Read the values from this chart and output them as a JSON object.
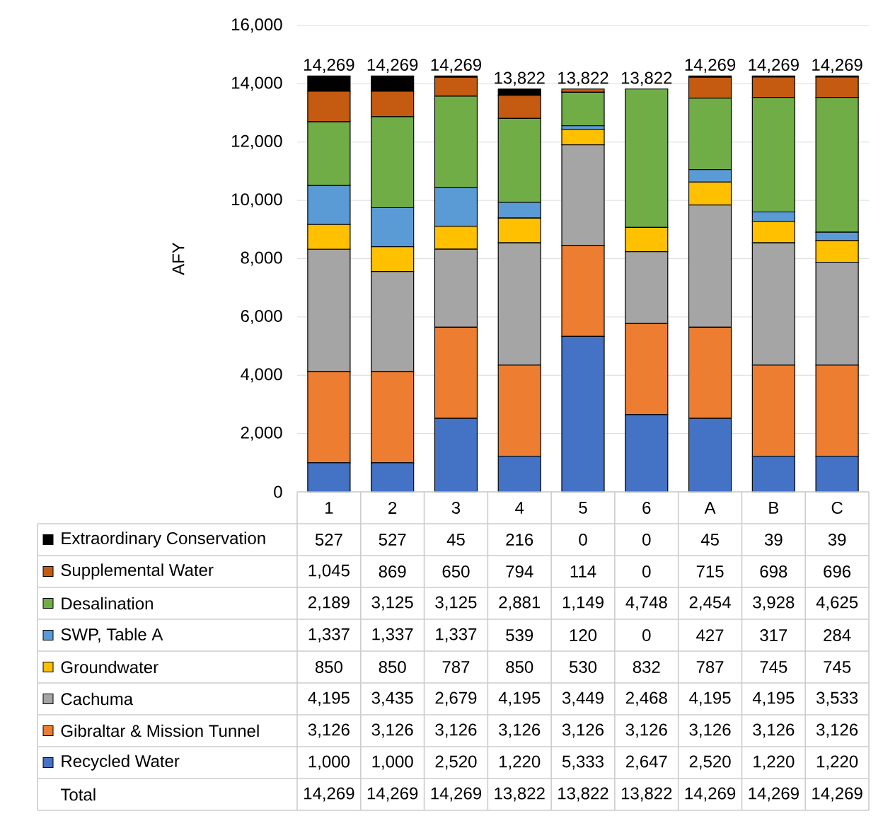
{
  "chart_data": {
    "type": "bar",
    "stacked": true,
    "ylabel": "AFY",
    "categories": [
      "1",
      "2",
      "3",
      "4",
      "5",
      "6",
      "A",
      "B",
      "C"
    ],
    "series": [
      {
        "name": "Recycled Water",
        "color": "#4472c4",
        "values": [
          1000,
          1000,
          2520,
          1220,
          5333,
          2647,
          2520,
          1220,
          1220
        ],
        "value_labels": [
          "1,000",
          "1,000",
          "2,520",
          "1,220",
          "5,333",
          "2,647",
          "2,520",
          "1,220",
          "1,220"
        ]
      },
      {
        "name": "Gibraltar & Mission Tunnel",
        "color": "#ed7d31",
        "values": [
          3126,
          3126,
          3126,
          3126,
          3126,
          3126,
          3126,
          3126,
          3126
        ],
        "value_labels": [
          "3,126",
          "3,126",
          "3,126",
          "3,126",
          "3,126",
          "3,126",
          "3,126",
          "3,126",
          "3,126"
        ]
      },
      {
        "name": "Cachuma",
        "color": "#a5a5a5",
        "values": [
          4195,
          3435,
          2679,
          4195,
          3449,
          2468,
          4195,
          4195,
          3533
        ],
        "value_labels": [
          "4,195",
          "3,435",
          "2,679",
          "4,195",
          "3,449",
          "2,468",
          "4,195",
          "4,195",
          "3,533"
        ]
      },
      {
        "name": "Groundwater",
        "color": "#ffc000",
        "values": [
          850,
          850,
          787,
          850,
          530,
          832,
          787,
          745,
          745
        ],
        "value_labels": [
          "850",
          "850",
          "787",
          "850",
          "530",
          "832",
          "787",
          "745",
          "745"
        ]
      },
      {
        "name": "SWP, Table A",
        "color": "#5b9bd5",
        "values": [
          1337,
          1337,
          1337,
          539,
          120,
          0,
          427,
          317,
          284
        ],
        "value_labels": [
          "1,337",
          "1,337",
          "1,337",
          "539",
          "120",
          "0",
          "427",
          "317",
          "284"
        ]
      },
      {
        "name": "Desalination",
        "color": "#70ad47",
        "values": [
          2189,
          3125,
          3125,
          2881,
          1149,
          4748,
          2454,
          3928,
          4625
        ],
        "value_labels": [
          "2,189",
          "3,125",
          "3,125",
          "2,881",
          "1,149",
          "4,748",
          "2,454",
          "3,928",
          "4,625"
        ]
      },
      {
        "name": "Supplemental Water",
        "color": "#c55a11",
        "values": [
          1045,
          869,
          650,
          794,
          114,
          0,
          715,
          698,
          696
        ],
        "value_labels": [
          "1,045",
          "869",
          "650",
          "794",
          "114",
          "0",
          "715",
          "698",
          "696"
        ]
      },
      {
        "name": "Extraordinary Conservation",
        "color": "#000000",
        "values": [
          527,
          527,
          45,
          216,
          0,
          0,
          45,
          39,
          39
        ],
        "value_labels": [
          "527",
          "527",
          "45",
          "216",
          "0",
          "0",
          "45",
          "39",
          "39"
        ]
      }
    ],
    "totals": [
      "14,269",
      "14,269",
      "14,269",
      "13,822",
      "13,822",
      "13,822",
      "14,269",
      "14,269",
      "14,269"
    ],
    "annotations": [
      "Total"
    ],
    "ylim": [
      0,
      16000
    ],
    "yticks": [
      0,
      {
        "value": 2000,
        "label": "2,000"
      },
      {
        "value": 4000,
        "label": "4,000"
      },
      {
        "value": 6000,
        "label": "6,000"
      },
      {
        "value": 8000,
        "label": "8,000"
      },
      {
        "value": 10000,
        "label": "10,000"
      },
      {
        "value": 12000,
        "label": "12,000"
      },
      {
        "value": 14000,
        "label": "14,000"
      },
      {
        "value": 16000,
        "label": "16,000"
      }
    ],
    "grid": "y",
    "legend": "bottom"
  }
}
